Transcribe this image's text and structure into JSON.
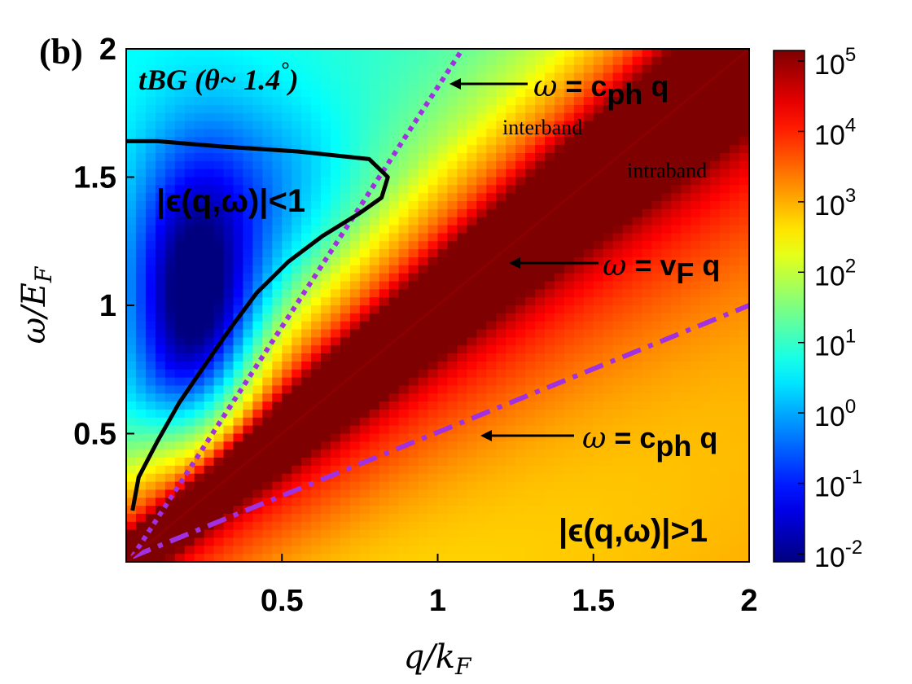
{
  "panel_label": "(b)",
  "chart_data": {
    "type": "heatmap",
    "title": "",
    "xlabel": "q/k_F",
    "ylabel": "ω/E_F",
    "xlim": [
      0,
      2
    ],
    "ylim": [
      0,
      2
    ],
    "xticks": [
      0.5,
      1,
      1.5,
      2
    ],
    "xtick_labels": [
      "0.5",
      "1",
      "1.5",
      "2"
    ],
    "yticks": [
      0.5,
      1,
      1.5,
      2
    ],
    "ytick_labels": [
      "0.5",
      "1",
      "1.5",
      "2"
    ],
    "colorbar": {
      "scale": "log",
      "range": [
        0.01,
        100000
      ],
      "ticks": [
        {
          "base": "10",
          "exp": "5"
        },
        {
          "base": "10",
          "exp": "4"
        },
        {
          "base": "10",
          "exp": "3"
        },
        {
          "base": "10",
          "exp": "2"
        },
        {
          "base": "10",
          "exp": "1"
        },
        {
          "base": "10",
          "exp": "0"
        },
        {
          "base": "10",
          "exp": "-1"
        },
        {
          "base": "10",
          "exp": "-2"
        }
      ],
      "colormap": [
        "#00007f",
        "#0000ff",
        "#007fff",
        "#00ffff",
        "#7fff7f",
        "#ffff00",
        "#ff7f00",
        "#ff0000",
        "#7f0000"
      ]
    },
    "lines": [
      {
        "style": "dotted",
        "color": "#a030e0",
        "slope": 1.9,
        "points": [
          [
            0.02,
            0.02
          ],
          [
            1.08,
            2.0
          ]
        ]
      },
      {
        "style": "dashdot",
        "color": "#a030e0",
        "slope": 0.5,
        "points": [
          [
            0.02,
            0.02
          ],
          [
            2.0,
            1.0
          ]
        ]
      },
      {
        "style": "solid-diagonal",
        "slope": 1.0,
        "points": [
          [
            0,
            0
          ],
          [
            2,
            2
          ]
        ]
      }
    ],
    "contour": {
      "level": "|ε(q,ω)|=1",
      "points": [
        [
          0.0,
          1.64
        ],
        [
          0.1,
          1.64
        ],
        [
          0.3,
          1.62
        ],
        [
          0.55,
          1.6
        ],
        [
          0.78,
          1.57
        ],
        [
          0.84,
          1.5
        ],
        [
          0.82,
          1.42
        ],
        [
          0.75,
          1.36
        ],
        [
          0.63,
          1.27
        ],
        [
          0.52,
          1.17
        ],
        [
          0.42,
          1.05
        ],
        [
          0.34,
          0.92
        ],
        [
          0.26,
          0.78
        ],
        [
          0.17,
          0.62
        ],
        [
          0.1,
          0.47
        ],
        [
          0.04,
          0.33
        ],
        [
          0.02,
          0.2
        ]
      ]
    },
    "annotations": {
      "tbg": {
        "main": "tBG (θ~ 1.4",
        "deg": "°",
        "close": ")"
      },
      "c_ph_upper": {
        "omega": "ω",
        "eq": " = c",
        "sub": "ph",
        "q": " q"
      },
      "interband": "interband",
      "intraband": "intraband",
      "v_f": {
        "omega": "ω",
        "eq": " = v",
        "sub": "F",
        "q": " q"
      },
      "c_ph_lower": {
        "omega": "ω",
        "eq": " = c",
        "sub": "ph",
        "q": " q"
      },
      "eps_lt": "|ϵ(q,ω)|<1",
      "eps_gt": "|ϵ(q,ω)|>1"
    }
  }
}
